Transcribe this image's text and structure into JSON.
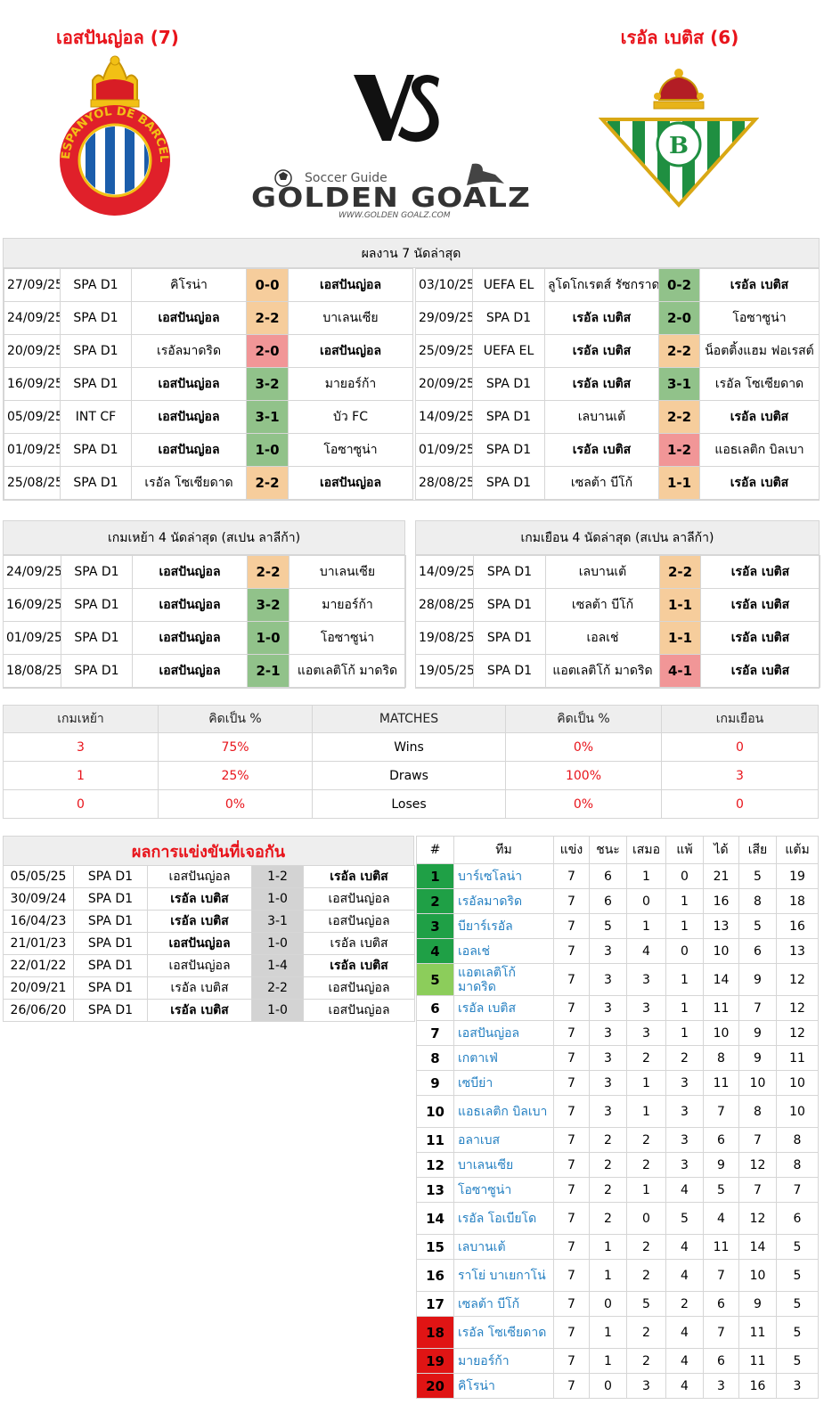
{
  "header": {
    "home_title": "เอสปันญ่อล (7)",
    "away_title": "เรอัล เบติส (6)",
    "vs_label": "VS",
    "site_tagline": "Soccer Guide",
    "site_name": "GOLDEN GOALZ",
    "site_url": "WWW.GOLDEN GOALZ.COM",
    "home_crest_text": "RCD ESPANYOL DE BARCELONA"
  },
  "last7": {
    "title": "ผลงาน 7 นัดล่าสุด",
    "home": [
      {
        "date": "27/09/25",
        "comp": "SPA D1",
        "home": "คิโรน่า",
        "score": "0-0",
        "away": "เอสปันญ่อล",
        "result": "draw",
        "bold": "away"
      },
      {
        "date": "24/09/25",
        "comp": "SPA D1",
        "home": "เอสปันญ่อล",
        "score": "2-2",
        "away": "บาเลนเซีย",
        "result": "draw",
        "bold": "home"
      },
      {
        "date": "20/09/25",
        "comp": "SPA D1",
        "home": "เรอัลมาดริด",
        "score": "2-0",
        "away": "เอสปันญ่อล",
        "result": "loss",
        "bold": "away"
      },
      {
        "date": "16/09/25",
        "comp": "SPA D1",
        "home": "เอสปันญ่อล",
        "score": "3-2",
        "away": "มายอร์ก้า",
        "result": "win",
        "bold": "home"
      },
      {
        "date": "05/09/25",
        "comp": "INT CF",
        "home": "เอสปันญ่อล",
        "score": "3-1",
        "away": "บัว FC",
        "result": "win",
        "bold": "home"
      },
      {
        "date": "01/09/25",
        "comp": "SPA D1",
        "home": "เอสปันญ่อล",
        "score": "1-0",
        "away": "โอซาซูน่า",
        "result": "win",
        "bold": "home"
      },
      {
        "date": "25/08/25",
        "comp": "SPA D1",
        "home": "เรอัล โซเซียดาด",
        "score": "2-2",
        "away": "เอสปันญ่อล",
        "result": "draw",
        "bold": "away"
      }
    ],
    "away": [
      {
        "date": "03/10/25",
        "comp": "UEFA EL",
        "home": "ลูโดโกเรตส์ รัซกราด",
        "score": "0-2",
        "away": "เรอัล เบติส",
        "result": "win",
        "bold": "away"
      },
      {
        "date": "29/09/25",
        "comp": "SPA D1",
        "home": "เรอัล เบติส",
        "score": "2-0",
        "away": "โอซาซูน่า",
        "result": "win",
        "bold": "home"
      },
      {
        "date": "25/09/25",
        "comp": "UEFA EL",
        "home": "เรอัล เบติส",
        "score": "2-2",
        "away": "น็อตติ้งแฮม ฟอเรสต์",
        "result": "draw",
        "bold": "home"
      },
      {
        "date": "20/09/25",
        "comp": "SPA D1",
        "home": "เรอัล เบติส",
        "score": "3-1",
        "away": "เรอัล โซเซียดาด",
        "result": "win",
        "bold": "home"
      },
      {
        "date": "14/09/25",
        "comp": "SPA D1",
        "home": "เลบานเต้",
        "score": "2-2",
        "away": "เรอัล เบติส",
        "result": "draw",
        "bold": "away"
      },
      {
        "date": "01/09/25",
        "comp": "SPA D1",
        "home": "เรอัล เบติส",
        "score": "1-2",
        "away": "แอธเลติก บิลเบา",
        "result": "loss",
        "bold": "home"
      },
      {
        "date": "28/08/25",
        "comp": "SPA D1",
        "home": "เซลต้า บีโก้",
        "score": "1-1",
        "away": "เรอัล เบติส",
        "result": "draw",
        "bold": "away"
      }
    ]
  },
  "last4": {
    "home_title": "เกมเหย้า 4 นัดล่าสุด (สเปน ลาลีก้า)",
    "away_title": "เกมเยือน 4 นัดล่าสุด (สเปน ลาลีก้า)",
    "home": [
      {
        "date": "24/09/25",
        "comp": "SPA D1",
        "home": "เอสปันญ่อล",
        "score": "2-2",
        "away": "บาเลนเซีย",
        "result": "draw",
        "bold": "home"
      },
      {
        "date": "16/09/25",
        "comp": "SPA D1",
        "home": "เอสปันญ่อล",
        "score": "3-2",
        "away": "มายอร์ก้า",
        "result": "win",
        "bold": "home"
      },
      {
        "date": "01/09/25",
        "comp": "SPA D1",
        "home": "เอสปันญ่อล",
        "score": "1-0",
        "away": "โอซาซูน่า",
        "result": "win",
        "bold": "home"
      },
      {
        "date": "18/08/25",
        "comp": "SPA D1",
        "home": "เอสปันญ่อล",
        "score": "2-1",
        "away": "แอตเลติโก้ มาดริด",
        "result": "win",
        "bold": "home"
      }
    ],
    "away": [
      {
        "date": "14/09/25",
        "comp": "SPA D1",
        "home": "เลบานเต้",
        "score": "2-2",
        "away": "เรอัล เบติส",
        "result": "draw",
        "bold": "away"
      },
      {
        "date": "28/08/25",
        "comp": "SPA D1",
        "home": "เซลต้า บีโก้",
        "score": "1-1",
        "away": "เรอัล เบติส",
        "result": "draw",
        "bold": "away"
      },
      {
        "date": "19/08/25",
        "comp": "SPA D1",
        "home": "เอลเช่",
        "score": "1-1",
        "away": "เรอัล เบติส",
        "result": "draw",
        "bold": "away"
      },
      {
        "date": "19/05/25",
        "comp": "SPA D1",
        "home": "แอตเลติโก้ มาดริด",
        "score": "4-1",
        "away": "เรอัล เบติส",
        "result": "loss",
        "bold": "away"
      }
    ]
  },
  "stats": {
    "headers": [
      "เกมเหย้า",
      "คิดเป็น %",
      "MATCHES",
      "คิดเป็น %",
      "เกมเยือน"
    ],
    "rows": [
      {
        "home": "3",
        "home_pct": "75%",
        "label": "Wins",
        "away_pct": "0%",
        "away": "0"
      },
      {
        "home": "1",
        "home_pct": "25%",
        "label": "Draws",
        "away_pct": "100%",
        "away": "3"
      },
      {
        "home": "0",
        "home_pct": "0%",
        "label": "Loses",
        "away_pct": "0%",
        "away": "0"
      }
    ]
  },
  "h2h": {
    "title": "ผลการแข่งขันที่เจอกัน",
    "rows": [
      {
        "date": "05/05/25",
        "comp": "SPA D1",
        "home": "เอสปันญ่อล",
        "score": "1-2",
        "away": "เรอัล เบติส",
        "bold": "away"
      },
      {
        "date": "30/09/24",
        "comp": "SPA D1",
        "home": "เรอัล เบติส",
        "score": "1-0",
        "away": "เอสปันญ่อล",
        "bold": "home"
      },
      {
        "date": "16/04/23",
        "comp": "SPA D1",
        "home": "เรอัล เบติส",
        "score": "3-1",
        "away": "เอสปันญ่อล",
        "bold": "home"
      },
      {
        "date": "21/01/23",
        "comp": "SPA D1",
        "home": "เอสปันญ่อล",
        "score": "1-0",
        "away": "เรอัล เบติส",
        "bold": "home"
      },
      {
        "date": "22/01/22",
        "comp": "SPA D1",
        "home": "เอสปันญ่อล",
        "score": "1-4",
        "away": "เรอัล เบติส",
        "bold": "away"
      },
      {
        "date": "20/09/21",
        "comp": "SPA D1",
        "home": "เรอัล เบติส",
        "score": "2-2",
        "away": "เอสปันญ่อล",
        "bold": "none"
      },
      {
        "date": "26/06/20",
        "comp": "SPA D1",
        "home": "เรอัล เบติส",
        "score": "1-0",
        "away": "เอสปันญ่อล",
        "bold": "home"
      }
    ]
  },
  "standings": {
    "headers": [
      "#",
      "ทีม",
      "แข่ง",
      "ชนะ",
      "เสมอ",
      "แพ้",
      "ได้",
      "เสีย",
      "แต้ม"
    ],
    "rank_colors": {
      "ucl": "#1fa046",
      "el": "#8ccd5b",
      "rel": "#e01414"
    },
    "rows": [
      {
        "rank": "1",
        "team": "บาร์เซโลน่า",
        "p": "7",
        "w": "6",
        "d": "1",
        "l": "0",
        "gf": "21",
        "ga": "5",
        "pts": "19",
        "zone": "ucl"
      },
      {
        "rank": "2",
        "team": "เรอัลมาดริด",
        "p": "7",
        "w": "6",
        "d": "0",
        "l": "1",
        "gf": "16",
        "ga": "8",
        "pts": "18",
        "zone": "ucl"
      },
      {
        "rank": "3",
        "team": "บียาร์เรอัล",
        "p": "7",
        "w": "5",
        "d": "1",
        "l": "1",
        "gf": "13",
        "ga": "5",
        "pts": "16",
        "zone": "ucl"
      },
      {
        "rank": "4",
        "team": "เอลเช่",
        "p": "7",
        "w": "3",
        "d": "4",
        "l": "0",
        "gf": "10",
        "ga": "6",
        "pts": "13",
        "zone": "ucl"
      },
      {
        "rank": "5",
        "team": "แอตเลติโก้ มาดริด",
        "p": "7",
        "w": "3",
        "d": "3",
        "l": "1",
        "gf": "14",
        "ga": "9",
        "pts": "12",
        "zone": "el"
      },
      {
        "rank": "6",
        "team": "เรอัล เบติส",
        "p": "7",
        "w": "3",
        "d": "3",
        "l": "1",
        "gf": "11",
        "ga": "7",
        "pts": "12",
        "zone": ""
      },
      {
        "rank": "7",
        "team": "เอสปันญ่อล",
        "p": "7",
        "w": "3",
        "d": "3",
        "l": "1",
        "gf": "10",
        "ga": "9",
        "pts": "12",
        "zone": ""
      },
      {
        "rank": "8",
        "team": "เกตาเฟ่",
        "p": "7",
        "w": "3",
        "d": "2",
        "l": "2",
        "gf": "8",
        "ga": "9",
        "pts": "11",
        "zone": ""
      },
      {
        "rank": "9",
        "team": "เซบีย่า",
        "p": "7",
        "w": "3",
        "d": "1",
        "l": "3",
        "gf": "11",
        "ga": "10",
        "pts": "10",
        "zone": ""
      },
      {
        "rank": "10",
        "team": "แอธเลติก บิลเบา",
        "p": "7",
        "w": "3",
        "d": "1",
        "l": "3",
        "gf": "7",
        "ga": "8",
        "pts": "10",
        "zone": ""
      },
      {
        "rank": "11",
        "team": "อลาเบส",
        "p": "7",
        "w": "2",
        "d": "2",
        "l": "3",
        "gf": "6",
        "ga": "7",
        "pts": "8",
        "zone": ""
      },
      {
        "rank": "12",
        "team": "บาเลนเซีย",
        "p": "7",
        "w": "2",
        "d": "2",
        "l": "3",
        "gf": "9",
        "ga": "12",
        "pts": "8",
        "zone": ""
      },
      {
        "rank": "13",
        "team": "โอซาซูน่า",
        "p": "7",
        "w": "2",
        "d": "1",
        "l": "4",
        "gf": "5",
        "ga": "7",
        "pts": "7",
        "zone": ""
      },
      {
        "rank": "14",
        "team": "เรอัล โอเบียโด",
        "p": "7",
        "w": "2",
        "d": "0",
        "l": "5",
        "gf": "4",
        "ga": "12",
        "pts": "6",
        "zone": ""
      },
      {
        "rank": "15",
        "team": "เลบานเต้",
        "p": "7",
        "w": "1",
        "d": "2",
        "l": "4",
        "gf": "11",
        "ga": "14",
        "pts": "5",
        "zone": ""
      },
      {
        "rank": "16",
        "team": "ราโย่ บาเยกาโน่",
        "p": "7",
        "w": "1",
        "d": "2",
        "l": "4",
        "gf": "7",
        "ga": "10",
        "pts": "5",
        "zone": ""
      },
      {
        "rank": "17",
        "team": "เซลต้า บีโก้",
        "p": "7",
        "w": "0",
        "d": "5",
        "l": "2",
        "gf": "6",
        "ga": "9",
        "pts": "5",
        "zone": ""
      },
      {
        "rank": "18",
        "team": "เรอัล โซเซียดาด",
        "p": "7",
        "w": "1",
        "d": "2",
        "l": "4",
        "gf": "7",
        "ga": "11",
        "pts": "5",
        "zone": "rel"
      },
      {
        "rank": "19",
        "team": "มายอร์ก้า",
        "p": "7",
        "w": "1",
        "d": "2",
        "l": "4",
        "gf": "6",
        "ga": "11",
        "pts": "5",
        "zone": "rel"
      },
      {
        "rank": "20",
        "team": "คิโรน่า",
        "p": "7",
        "w": "0",
        "d": "3",
        "l": "4",
        "gf": "3",
        "ga": "16",
        "pts": "3",
        "zone": "rel"
      }
    ]
  }
}
